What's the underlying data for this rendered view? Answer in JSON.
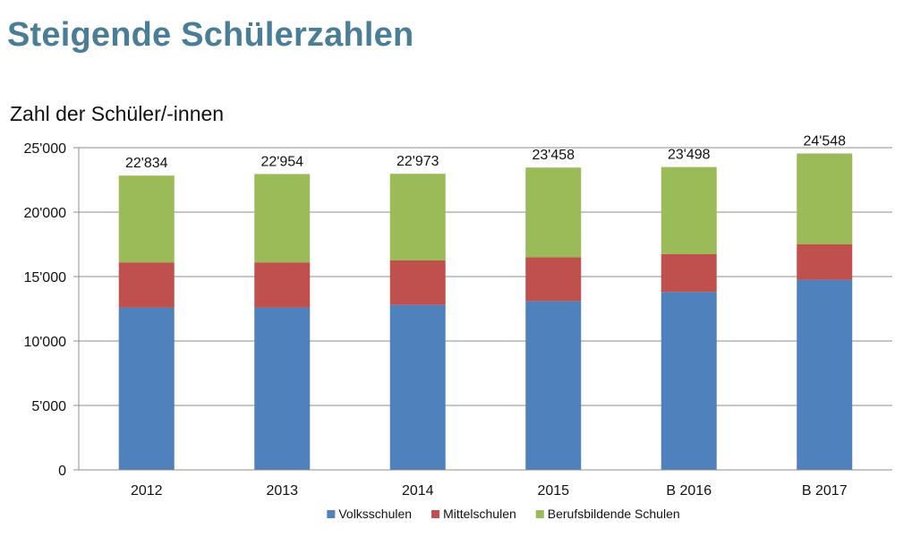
{
  "page": {
    "title": "Steigende Schülerzahlen"
  },
  "chart_data": {
    "type": "bar",
    "stacked": true,
    "title": "",
    "subtitle": "Zahl der Schüler/-innen",
    "xlabel": "",
    "ylabel": "",
    "categories": [
      "2012",
      "2013",
      "2014",
      "2015",
      "B 2016",
      "B 2017"
    ],
    "series": [
      {
        "name": "Volksschulen",
        "color": "#4f81bd",
        "values": [
          12600,
          12600,
          12800,
          13100,
          13800,
          14750
        ]
      },
      {
        "name": "Mittelschulen",
        "color": "#c0504d",
        "values": [
          3500,
          3500,
          3450,
          3400,
          2950,
          2750
        ]
      },
      {
        "name": "Berufsbildende Schulen",
        "color": "#9bbb59",
        "values": [
          6734,
          6854,
          6723,
          6958,
          6748,
          7048
        ]
      }
    ],
    "totals": [
      22834,
      22954,
      22973,
      23458,
      23498,
      24548
    ],
    "total_labels": [
      "22'834",
      "22'954",
      "22'973",
      "23'458",
      "23'498",
      "24'548"
    ],
    "ylim": [
      0,
      25000
    ],
    "yticks": [
      0,
      5000,
      10000,
      15000,
      20000,
      25000
    ],
    "ytick_labels": [
      "0",
      "5'000",
      "10'000",
      "15'000",
      "20'000",
      "25'000"
    ],
    "grid": true,
    "legend_position": "bottom-center"
  }
}
